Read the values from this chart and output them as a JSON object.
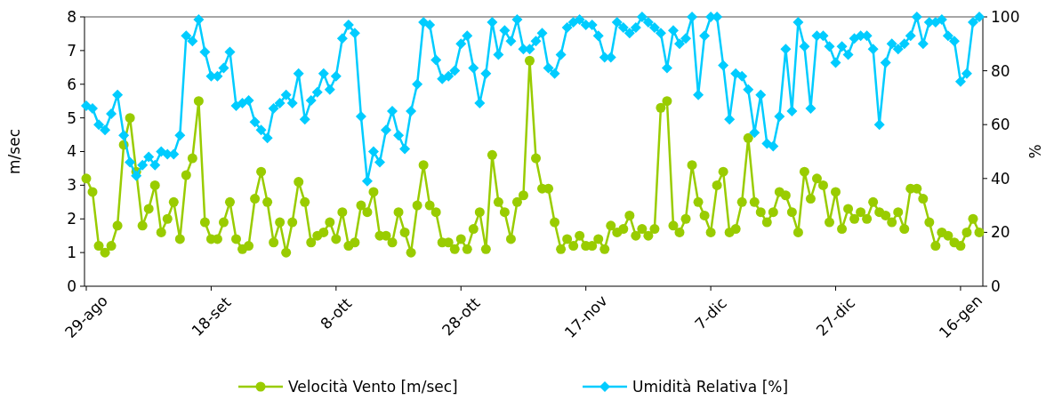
{
  "chart_data": {
    "type": "line",
    "ylabel": "m/sec",
    "y2label": "%",
    "categories": [
      "29-ago",
      null,
      null,
      null,
      null,
      null,
      null,
      null,
      null,
      null,
      null,
      null,
      null,
      null,
      null,
      null,
      null,
      null,
      null,
      null,
      "18-set",
      null,
      null,
      null,
      null,
      null,
      null,
      null,
      null,
      null,
      null,
      null,
      null,
      null,
      null,
      null,
      null,
      null,
      null,
      null,
      "8-ott",
      null,
      null,
      null,
      null,
      null,
      null,
      null,
      null,
      null,
      null,
      null,
      null,
      null,
      null,
      null,
      null,
      null,
      null,
      null,
      "28-ott",
      null,
      null,
      null,
      null,
      null,
      null,
      null,
      null,
      null,
      null,
      null,
      null,
      null,
      null,
      null,
      null,
      null,
      null,
      null,
      "17-nov",
      null,
      null,
      null,
      null,
      null,
      null,
      null,
      null,
      null,
      null,
      null,
      null,
      null,
      null,
      null,
      null,
      null,
      null,
      null,
      "7-dic",
      null,
      null,
      null,
      null,
      null,
      null,
      null,
      null,
      null,
      null,
      null,
      null,
      null,
      null,
      null,
      null,
      null,
      null,
      null,
      "27-dic",
      null,
      null,
      null,
      null,
      null,
      null,
      null,
      null,
      null,
      null,
      null,
      null,
      null,
      null,
      null,
      null,
      null,
      null,
      null,
      "16-gen",
      null,
      null,
      null
    ],
    "series": [
      {
        "name": "Velocità Vento [m/sec]",
        "color": "#99cc00",
        "marker": "circle",
        "values": [
          3.2,
          2.8,
          1.2,
          1.0,
          1.2,
          1.8,
          4.2,
          5.0,
          3.4,
          1.8,
          2.3,
          3.0,
          1.6,
          2.0,
          2.5,
          1.4,
          3.3,
          3.8,
          5.5,
          1.9,
          1.4,
          1.4,
          1.9,
          2.5,
          1.4,
          1.1,
          1.2,
          2.6,
          3.4,
          2.5,
          1.3,
          1.9,
          1.0,
          1.9,
          3.1,
          2.5,
          1.3,
          1.5,
          1.6,
          1.9,
          1.4,
          2.2,
          1.2,
          1.3,
          2.4,
          2.2,
          2.8,
          1.5,
          1.5,
          1.3,
          2.2,
          1.6,
          1.0,
          2.4,
          3.6,
          2.4,
          2.2,
          1.3,
          1.3,
          1.1,
          1.4,
          1.1,
          1.7,
          2.2,
          1.1,
          3.9,
          2.5,
          2.2,
          1.4,
          2.5,
          2.7,
          6.7,
          3.8,
          2.9,
          2.9,
          1.9,
          1.1,
          1.4,
          1.2,
          1.5,
          1.2,
          1.2,
          1.4,
          1.1,
          1.8,
          1.6,
          1.7,
          2.1,
          1.5,
          1.7,
          1.5,
          1.7,
          5.3,
          5.5,
          1.8,
          1.6,
          2.0,
          3.6,
          2.5,
          2.1,
          1.6,
          3.0,
          3.4,
          1.6,
          1.7,
          2.5,
          4.4,
          2.5,
          2.2,
          1.9,
          2.2,
          2.8,
          2.7,
          2.2,
          1.6,
          3.4,
          2.6,
          3.2,
          3.0,
          1.9,
          2.8,
          1.7,
          2.3,
          2.0,
          2.2,
          2.0,
          2.5,
          2.2,
          2.1,
          1.9,
          2.2,
          1.7,
          2.9,
          2.9,
          2.6,
          1.9,
          1.2,
          1.6,
          1.5,
          1.3,
          1.2,
          1.6,
          2.0,
          1.6
        ]
      },
      {
        "name": "Umidità Relativa [%]",
        "color": "#00ccff",
        "marker": "diamond",
        "axis": "y2",
        "values": [
          67,
          66,
          60,
          58,
          64,
          71,
          56,
          46,
          41,
          45,
          48,
          45,
          50,
          49,
          49,
          56,
          93,
          91,
          99,
          87,
          78,
          78,
          81,
          87,
          67,
          68,
          69,
          61,
          58,
          55,
          66,
          68,
          71,
          68,
          79,
          62,
          69,
          72,
          79,
          73,
          78,
          92,
          97,
          94,
          63,
          39,
          50,
          46,
          58,
          65,
          56,
          51,
          65,
          75,
          98,
          97,
          84,
          77,
          78,
          80,
          90,
          93,
          81,
          68,
          79,
          98,
          86,
          95,
          91,
          99,
          88,
          88,
          91,
          94,
          81,
          79,
          86,
          96,
          98,
          99,
          97,
          97,
          93,
          85,
          85,
          98,
          96,
          94,
          96,
          100,
          98,
          96,
          94,
          81,
          95,
          90,
          92,
          100,
          71,
          93,
          100,
          100,
          82,
          62,
          79,
          78,
          73,
          57,
          71,
          53,
          52,
          63,
          88,
          65,
          98,
          89,
          66,
          93,
          93,
          89,
          83,
          89,
          86,
          92,
          93,
          93,
          88,
          60,
          83,
          90,
          88,
          90,
          93,
          100,
          90,
          98,
          98,
          99,
          93,
          91,
          76,
          79,
          98,
          100
        ]
      }
    ],
    "ylim": [
      0,
      8
    ],
    "yticks": [
      0,
      1,
      2,
      3,
      4,
      5,
      6,
      7,
      8
    ],
    "y2lim": [
      0,
      100
    ],
    "y2ticks": [
      0,
      20,
      40,
      60,
      80,
      100
    ],
    "grid": false,
    "legend": "bottom",
    "line_style": "solid"
  }
}
